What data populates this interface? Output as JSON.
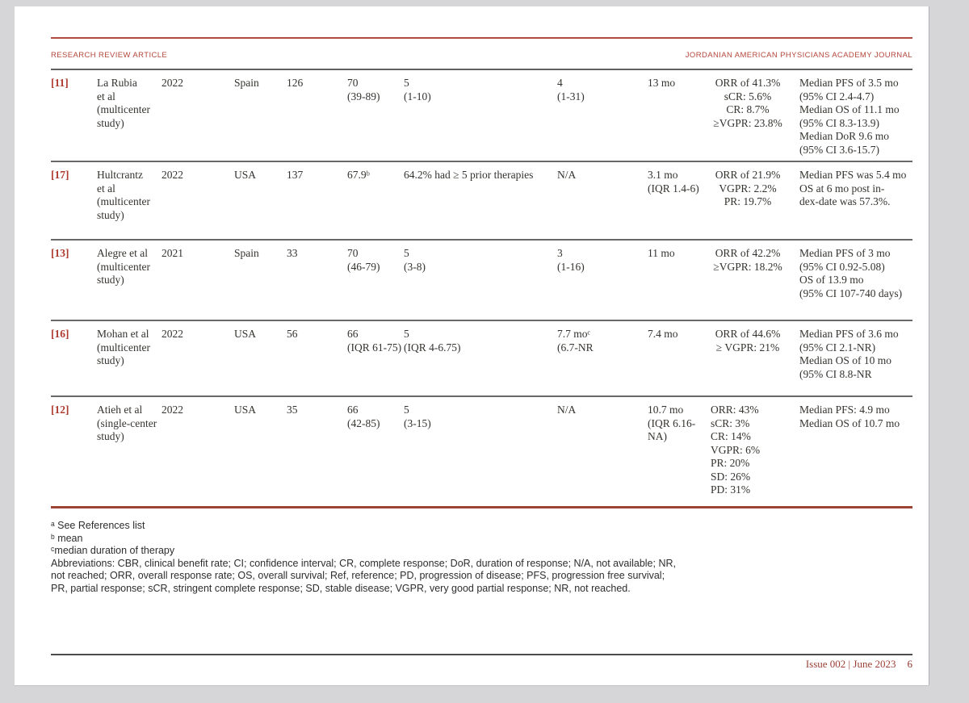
{
  "header": {
    "left": "RESEARCH REVIEW ARTICLE",
    "right": "JORDANIAN AMERICAN PHYSICIANS ACADEMY JOURNAL"
  },
  "colors": {
    "accent_red": "#b04a3e",
    "table_rule_gray": "#5f5f62",
    "table_bottom_maroon": "#9e4437",
    "ref_red": "#ae3c30"
  },
  "table": {
    "rows": [
      {
        "ref": "[11]",
        "author": [
          "La Rubia",
          "et al",
          "(multicenter",
          "study)"
        ],
        "year": "2022",
        "country": "Spain",
        "n": "126",
        "age": [
          "70",
          "(39-89)"
        ],
        "prior_therapies": [
          "5",
          "(1-10)"
        ],
        "col8": [
          "4",
          "(1-31)"
        ],
        "col9": [
          "13 mo"
        ],
        "response": [
          "ORR of 41.3%",
          "sCR: 5.6%",
          "CR: 8.7%",
          "≥VGPR: 23.8%"
        ],
        "response_align": "center",
        "outcomes": [
          "Median PFS of 3.5 mo",
          "(95% CI 2.4-4.7)",
          "Median OS of 11.1 mo",
          "(95% CI 8.3-13.9)",
          "Median DoR 9.6 mo",
          "(95% CI 3.6-15.7)"
        ]
      },
      {
        "ref": "[17]",
        "author": [
          "Hultcrantz",
          "et al",
          "(multicenter",
          "study)"
        ],
        "year": "2022",
        "country": "USA",
        "n": "137",
        "age": [
          "67.9ᵇ"
        ],
        "prior_therapies": [
          "64.2% had ≥ 5 prior therapies"
        ],
        "col8": [
          "N/A"
        ],
        "col9": [
          "3.1 mo",
          "(IQR 1.4-6)"
        ],
        "response": [
          "ORR of 21.9%",
          "VGPR: 2.2%",
          "PR: 19.7%"
        ],
        "response_align": "center",
        "outcomes": [
          "Median PFS was 5.4 mo",
          "OS at 6 mo post in-",
          "dex-date was 57.3%."
        ]
      },
      {
        "ref": "[13]",
        "author": [
          "Alegre et al",
          "(multicenter",
          "study)"
        ],
        "year": "2021",
        "country": "Spain",
        "n": "33",
        "age": [
          "70",
          "(46-79)"
        ],
        "prior_therapies": [
          "5",
          "(3-8)"
        ],
        "col8": [
          "3",
          "(1-16)"
        ],
        "col9": [
          "11 mo"
        ],
        "response": [
          "ORR of 42.2%",
          "≥VGPR: 18.2%"
        ],
        "response_align": "center",
        "outcomes": [
          "Median PFS of 3 mo",
          "(95% CI 0.92-5.08)",
          "OS of 13.9 mo",
          "(95% CI 107-740 days)"
        ]
      },
      {
        "ref": "[16]",
        "author": [
          "Mohan et al",
          "(multicenter",
          "study)"
        ],
        "year": "2022",
        "country": "USA",
        "n": "56",
        "age": [
          "66",
          "(IQR 61-75)"
        ],
        "prior_therapies": [
          "5",
          "(IQR 4-6.75)"
        ],
        "col8": [
          "7.7 moᶜ",
          "(6.7-NR"
        ],
        "col9": [
          "7.4 mo"
        ],
        "response": [
          "ORR of 44.6%",
          "≥ VGPR: 21%"
        ],
        "response_align": "center",
        "outcomes": [
          "Median PFS of 3.6 mo",
          "(95% CI 2.1-NR)",
          "Median OS of 10 mo",
          "(95% CI 8.8-NR"
        ]
      },
      {
        "ref": "[12]",
        "author": [
          "Atieh et al",
          "(single-center",
          "study)"
        ],
        "year": "2022",
        "country": "USA",
        "n": "35",
        "age": [
          "66",
          "(42-85)"
        ],
        "prior_therapies": [
          "5",
          "(3-15)"
        ],
        "col8": [
          "N/A"
        ],
        "col9": [
          "10.7 mo",
          "(IQR 6.16-",
          "NA)"
        ],
        "response": [
          "ORR: 43%",
          "sCR: 3%",
          "CR: 14%",
          "VGPR: 6%",
          "PR: 20%",
          "SD: 26%",
          "PD: 31%"
        ],
        "response_align": "left",
        "outcomes": [
          "Median PFS: 4.9 mo",
          "Median OS of 10.7 mo"
        ]
      }
    ]
  },
  "footnotes": {
    "lines": [
      "ᵃ See References list",
      "ᵇ mean",
      "ᶜmedian duration of therapy"
    ]
  },
  "abbreviations": {
    "lines": [
      "Abbreviations: CBR, clinical benefit rate; CI; confidence interval; CR, complete response; DoR, duration of response; N/A, not available; NR,",
      "not reached; ORR, overall response rate; OS, overall survival; Ref, reference; PD, progression of disease; PFS, progression free survival;",
      "PR, partial response; sCR, stringent complete response; SD, stable disease; VGPR, very good partial response; NR, not reached."
    ]
  },
  "footer": {
    "issue": "Issue 002 | June 2023",
    "page_number": "6"
  }
}
